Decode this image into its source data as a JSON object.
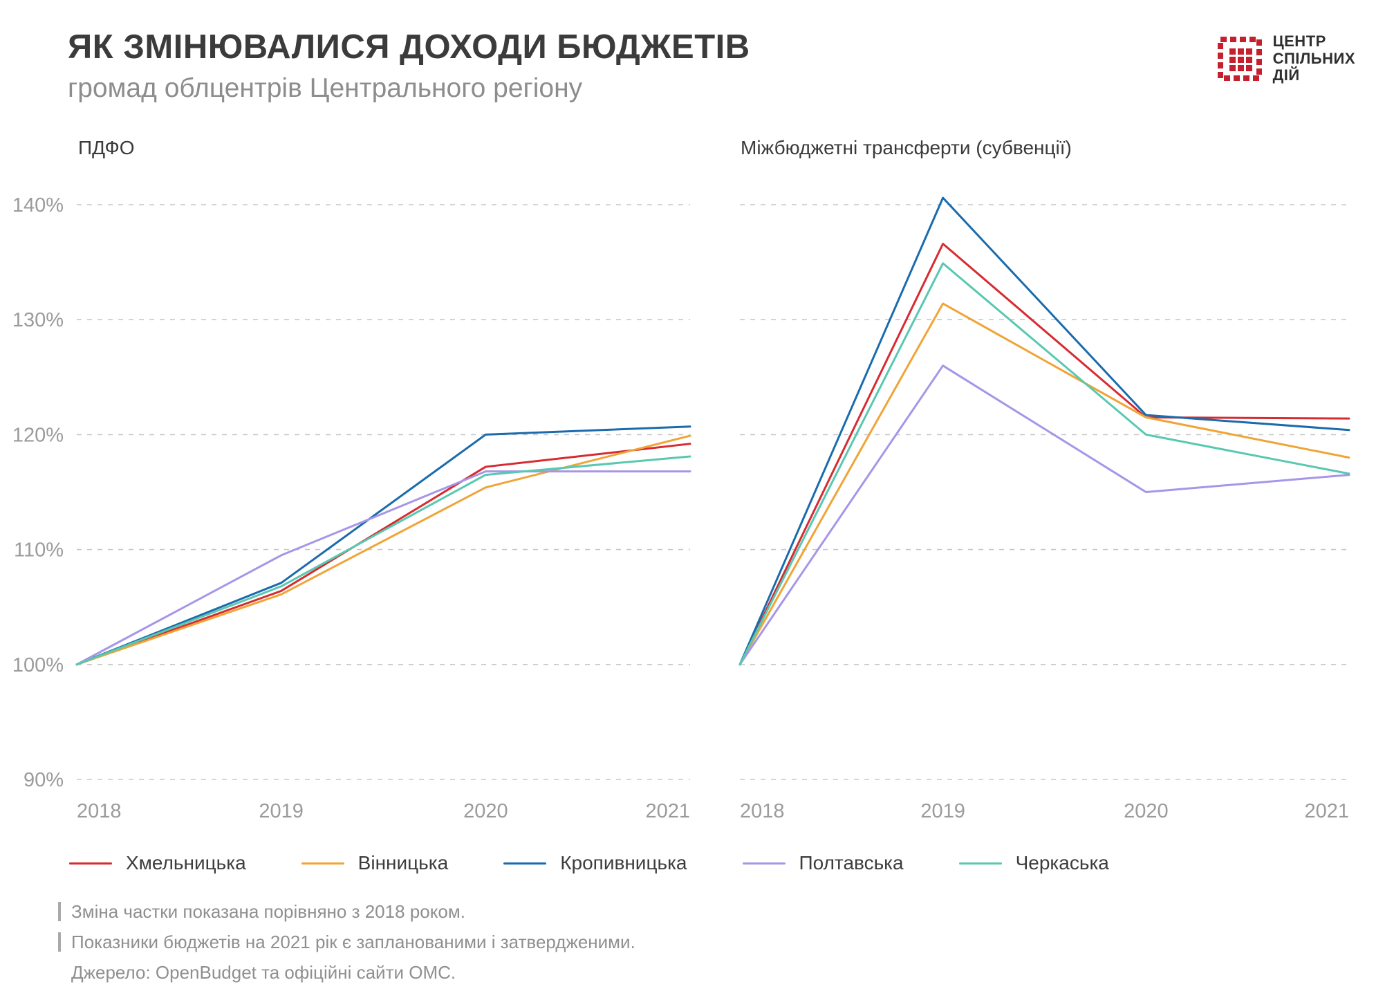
{
  "page": {
    "title": "ЯК ЗМІНЮВАЛИСЯ ДОХОДИ БЮДЖЕТІВ",
    "subtitle": "громад облцентрів Центрального регіону"
  },
  "logo": {
    "line1": "ЦЕНТР",
    "line2": "СПІЛЬНИХ",
    "line3": "ДІЙ",
    "color": "#c4202e"
  },
  "colors": {
    "grid": "#c8c8c8",
    "tick_label": "#9b9b9b",
    "red": "#d62b30",
    "orange": "#f0a437",
    "blue": "#1a6bad",
    "purple": "#a795e8",
    "teal": "#58c8b0"
  },
  "chart_data": [
    {
      "type": "line",
      "title": "ПДФО",
      "x": [
        "2018",
        "2019",
        "2020",
        "2021"
      ],
      "unit": "%",
      "ylim": [
        90,
        140
      ],
      "yticks": [
        90,
        100,
        110,
        120,
        130,
        140
      ],
      "grid": "dashed-horizontal",
      "series": [
        {
          "name": "Хмельницька",
          "color": "#d62b30",
          "values": [
            100,
            106.4,
            117.2,
            119.2
          ]
        },
        {
          "name": "Вінницька",
          "color": "#f0a437",
          "values": [
            100,
            106.1,
            115.4,
            119.9
          ]
        },
        {
          "name": "Кропивницька",
          "color": "#1a6bad",
          "values": [
            100,
            107.1,
            120.0,
            120.7
          ]
        },
        {
          "name": "Полтавська",
          "color": "#a795e8",
          "values": [
            100,
            109.5,
            116.8,
            116.8
          ]
        },
        {
          "name": "Черкаська",
          "color": "#58c8b0",
          "values": [
            100,
            106.8,
            116.5,
            118.1
          ]
        }
      ]
    },
    {
      "type": "line",
      "title": "Міжбюджетні трансферти (субвенції)",
      "x": [
        "2018",
        "2019",
        "2020",
        "2021"
      ],
      "unit": "%",
      "ylim": [
        90,
        140
      ],
      "yticks": [
        90,
        100,
        110,
        120,
        130,
        140
      ],
      "grid": "dashed-horizontal",
      "series": [
        {
          "name": "Хмельницька",
          "color": "#d62b30",
          "values": [
            100,
            136.6,
            121.5,
            121.4
          ]
        },
        {
          "name": "Вінницька",
          "color": "#f0a437",
          "values": [
            100,
            131.4,
            121.5,
            118.0
          ]
        },
        {
          "name": "Кропивницька",
          "color": "#1a6bad",
          "values": [
            100,
            140.6,
            121.7,
            120.4
          ]
        },
        {
          "name": "Полтавська",
          "color": "#a795e8",
          "values": [
            100,
            126.0,
            115.0,
            116.5
          ]
        },
        {
          "name": "Черкаська",
          "color": "#58c8b0",
          "values": [
            100,
            134.9,
            120.0,
            116.6
          ]
        }
      ]
    }
  ],
  "legend": [
    {
      "label": "Хмельницька",
      "color": "#d62b30"
    },
    {
      "label": "Вінницька",
      "color": "#f0a437"
    },
    {
      "label": "Кропивницька",
      "color": "#1a6bad"
    },
    {
      "label": "Полтавська",
      "color": "#a795e8"
    },
    {
      "label": "Черкаська",
      "color": "#58c8b0"
    }
  ],
  "footnotes": [
    "Зміна частки показана порівняно з 2018 роком.",
    "Показники бюджетів на 2021 рік є запланованими і затвердженими.",
    "Джерело: OpenBudget та офіційні сайти ОМС."
  ]
}
